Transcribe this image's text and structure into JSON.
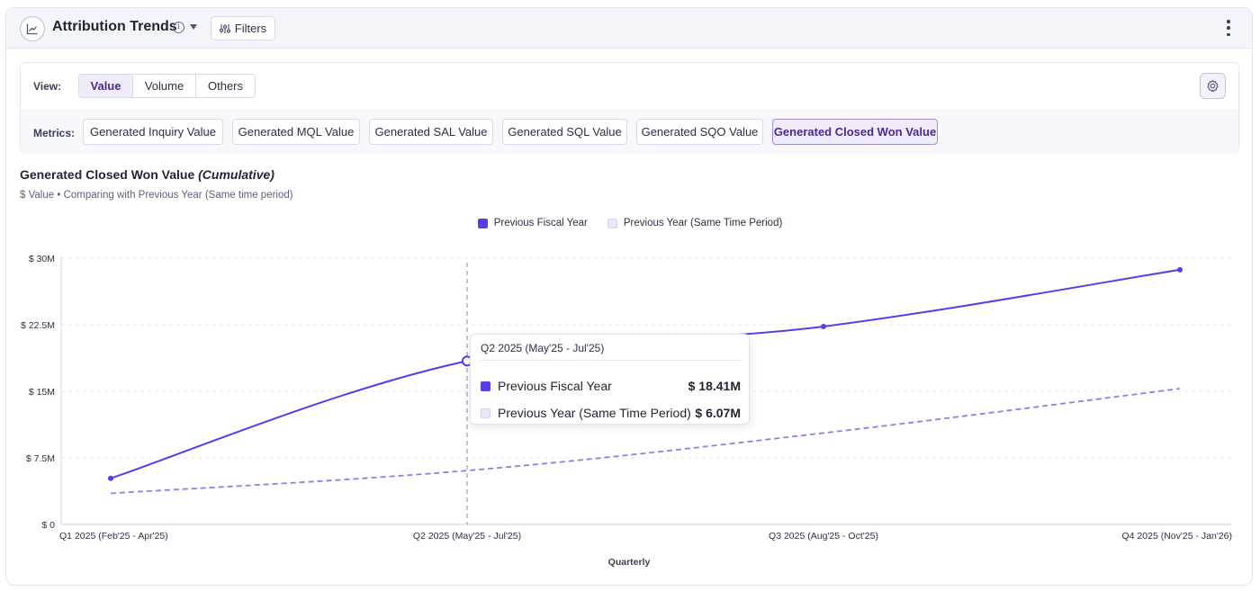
{
  "header": {
    "title": "Attribution Trends",
    "info_icon": "info-icon",
    "filters_label": "Filters"
  },
  "view": {
    "label": "View:",
    "options": [
      "Value",
      "Volume",
      "Others"
    ],
    "selected": "Value"
  },
  "metrics": {
    "label": "Metrics:",
    "options": [
      "Generated Inquiry Value",
      "Generated MQL Value",
      "Generated SAL Value",
      "Generated SQL Value",
      "Generated SQO Value",
      "Generated Closed Won Value"
    ],
    "selected": "Generated Closed Won Value"
  },
  "chart_header": {
    "title": "Generated Closed Won Value",
    "title_suffix": "(Cumulative)",
    "subtitle": "$ Value  •  Comparing with Previous Year (Same time period)"
  },
  "tooltip": {
    "period": "Q2 2025 (May'25 - Jul'25)",
    "rows": [
      {
        "label": "Previous Fiscal Year",
        "value": "$ 18.41M"
      },
      {
        "label": "Previous Year (Same Time Period)",
        "value": "$ 6.07M"
      }
    ]
  },
  "colors": {
    "primary": "#5b3ae8",
    "secondary": "#8f7de8",
    "secondary_swatch": "#e9e5fa",
    "accent_bg": "#f1ecfb"
  },
  "chart_data": {
    "type": "line",
    "categories": [
      "Q1 2025 (Feb'25 - Apr'25)",
      "Q2 2025 (May'25 - Jul'25)",
      "Q3 2025 (Aug'25 - Oct'25)",
      "Q4 2025 (Nov'25 - Jan'26)"
    ],
    "xlabel": "Quarterly",
    "ylabel": "",
    "ylim": [
      0,
      30
    ],
    "y_ticks": [
      0,
      7.5,
      15,
      22.5,
      30
    ],
    "y_tick_labels": [
      "$ 0",
      "$ 7.5M",
      "$ 15M",
      "$ 22.5M",
      "$ 30M"
    ],
    "unit": "$M",
    "grid": true,
    "legend": "top-center",
    "highlighted_index": 1,
    "series": [
      {
        "name": "Previous Fiscal Year",
        "values": [
          5.2,
          18.41,
          22.3,
          28.7
        ],
        "style": "solid"
      },
      {
        "name": "Previous Year (Same Time Period)",
        "values": [
          3.5,
          6.07,
          10.3,
          15.3
        ],
        "style": "dashed"
      }
    ]
  }
}
